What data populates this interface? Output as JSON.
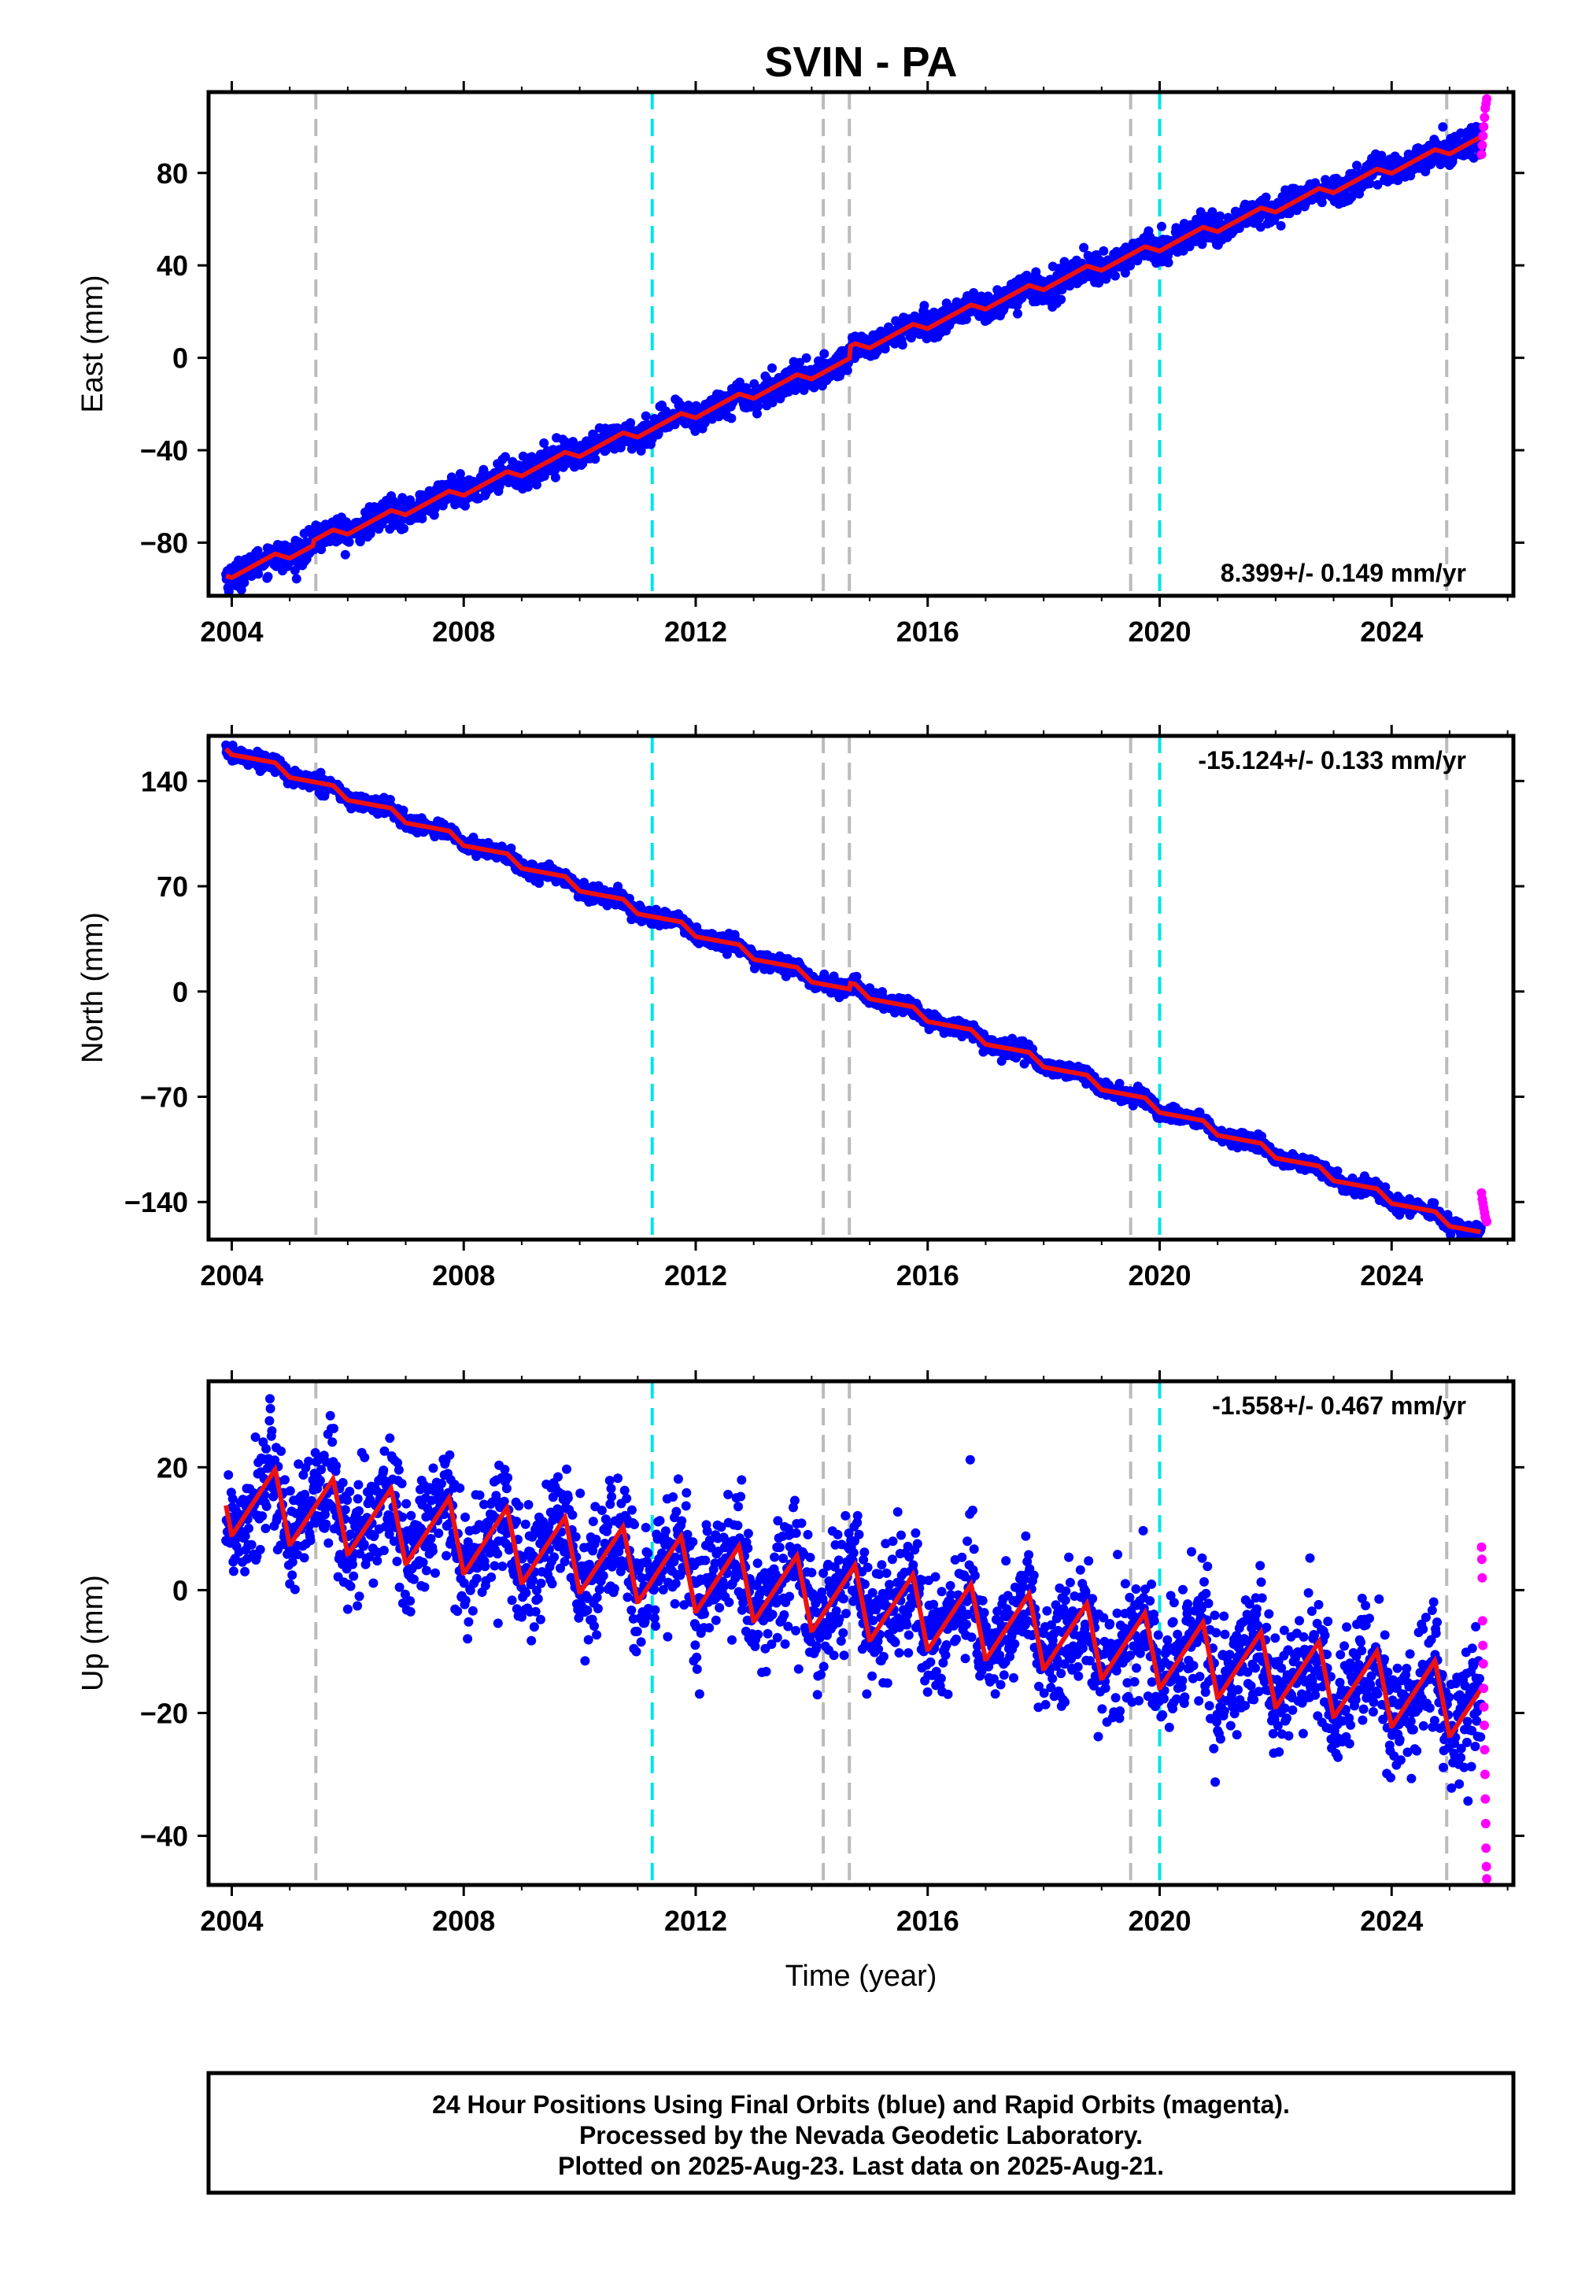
{
  "title": "SVIN - PA",
  "xlabel": "Time (year)",
  "caption": {
    "line1": "24 Hour Positions Using Final Orbits (blue) and Rapid Orbits (magenta).",
    "line2": "Processed by the Nevada Geodetic Laboratory.",
    "line3": "Plotted on 2025-Aug-23. Last data on 2025-Aug-21."
  },
  "colors": {
    "final": "#0000ff",
    "rapid": "#ff00ff",
    "model": "#ee1111",
    "event_gray": "#bbbbbb",
    "event_cyan": "#00e5e5"
  },
  "chart_data": [
    {
      "type": "scatter",
      "name": "east",
      "ylabel": "East (mm)",
      "rate": "8.399+/- 0.149 mm/yr",
      "rate_position": "bottom-right",
      "xlim": [
        2003.6,
        2026.1
      ],
      "ylim": [
        -103,
        115
      ],
      "xticks": [
        2004,
        2008,
        2012,
        2016,
        2020,
        2024
      ],
      "yticks": [
        -80,
        -40,
        0,
        40,
        80
      ],
      "trend": {
        "t0": 2003.9,
        "y0": -94,
        "rate": 8.399,
        "seasonal_amp": 2,
        "noise": 3,
        "steps": [
          {
            "t": 2014.65,
            "dy": 5
          },
          {
            "t": 2005.4,
            "dy": 2
          }
        ]
      },
      "rapid": {
        "t_start": 2025.55,
        "t_end": 2025.64,
        "values": [
          88,
          92,
          96,
          100,
          104,
          108,
          110,
          112
        ]
      },
      "gray_events": [
        2005.45,
        2014.2,
        2014.65,
        2019.5,
        2024.95
      ],
      "cyan_events": [
        2011.25,
        2020.0
      ]
    },
    {
      "type": "scatter",
      "name": "north",
      "ylabel": "North (mm)",
      "rate": "-15.124+/- 0.133 mm/yr",
      "rate_position": "top-right",
      "xlim": [
        2003.6,
        2026.1
      ],
      "ylim": [
        -165,
        170
      ],
      "xticks": [
        2004,
        2008,
        2012,
        2016,
        2020,
        2024
      ],
      "yticks": [
        -140,
        -70,
        0,
        70,
        140
      ],
      "yticklabels": [
        "−140",
        "−70",
        "0",
        "70",
        "140"
      ],
      "trend": {
        "t0": 2003.9,
        "y0": 162,
        "rate": -15.124,
        "seasonal_amp": 3,
        "noise": 2.5,
        "steps": [
          {
            "t": 2014.65,
            "dy": 4
          }
        ]
      },
      "rapid": {
        "t_start": 2025.55,
        "t_end": 2025.64,
        "values": [
          -134,
          -138,
          -141,
          -144,
          -147,
          -150,
          -152,
          -153
        ]
      },
      "gray_events": [
        2005.45,
        2014.2,
        2014.65,
        2019.5,
        2024.95
      ],
      "cyan_events": [
        2011.25,
        2020.0
      ]
    },
    {
      "type": "scatter",
      "name": "up",
      "ylabel": "Up (mm)",
      "rate": "-1.558+/- 0.467 mm/yr",
      "rate_position": "top-right",
      "xlim": [
        2003.6,
        2026.1
      ],
      "ylim": [
        -48,
        34
      ],
      "xticks": [
        2004,
        2008,
        2012,
        2016,
        2020,
        2024
      ],
      "yticks": [
        -40,
        -20,
        0,
        20
      ],
      "yticklabels": [
        "−40",
        "−20",
        "0",
        "20"
      ],
      "trend": {
        "t0": 2003.9,
        "y0": 15,
        "rate": -1.558,
        "seasonal_amp": 6,
        "noise": 5,
        "steps": []
      },
      "rapid": {
        "t_start": 2025.55,
        "t_end": 2025.64,
        "values": [
          7,
          5,
          2,
          -5,
          -9,
          -12,
          -16,
          -19,
          -22,
          -26,
          -30,
          -34,
          -38,
          -42,
          -45,
          -47
        ]
      },
      "gray_events": [
        2005.45,
        2014.2,
        2014.65,
        2019.5,
        2024.95
      ],
      "cyan_events": [
        2011.25,
        2020.0
      ]
    }
  ]
}
